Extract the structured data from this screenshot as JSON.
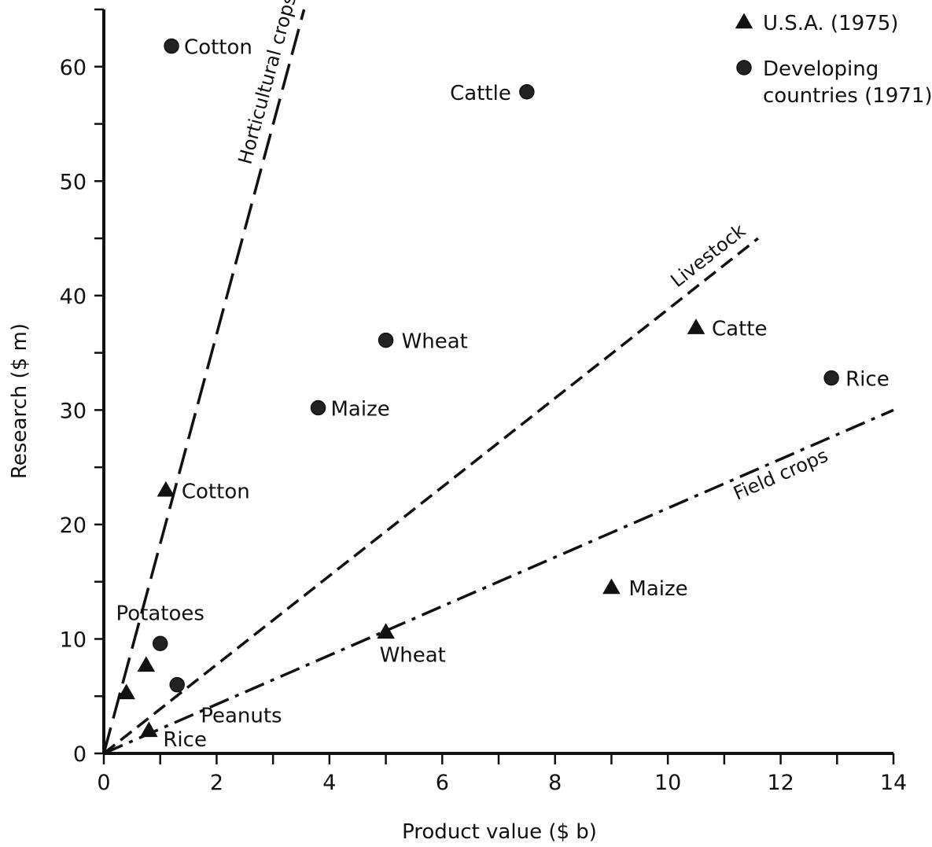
{
  "chart_data": {
    "type": "scatter",
    "title": "",
    "xlabel": "Product value ($ b)",
    "ylabel": "Research ($ m)",
    "xlim": [
      0,
      14
    ],
    "ylim": [
      0,
      65
    ],
    "x_ticks": [
      0,
      2,
      4,
      6,
      8,
      10,
      12,
      14
    ],
    "y_ticks": [
      0,
      10,
      20,
      30,
      40,
      50,
      60
    ],
    "grid": false,
    "legend_position": "top-right",
    "series": [
      {
        "name": "U.S.A. (1975)",
        "marker": "triangle",
        "points": [
          {
            "x": 1.1,
            "y": 23,
            "label": "Cotton"
          },
          {
            "x": 10.5,
            "y": 37.2,
            "label": "Catte"
          },
          {
            "x": 9.0,
            "y": 14.5,
            "label": "Maize"
          },
          {
            "x": 5.0,
            "y": 10.6,
            "label": "Wheat"
          },
          {
            "x": 0.8,
            "y": 2.0,
            "label": "Rice"
          },
          {
            "x": 0.4,
            "y": 5.3,
            "label": ""
          },
          {
            "x": 0.75,
            "y": 7.7,
            "label": ""
          }
        ]
      },
      {
        "name": "Developing countries (1971)",
        "marker": "circle",
        "points": [
          {
            "x": 1.2,
            "y": 61.8,
            "label": "Cotton"
          },
          {
            "x": 7.5,
            "y": 57.8,
            "label": "Cattle"
          },
          {
            "x": 5.0,
            "y": 36.1,
            "label": "Wheat"
          },
          {
            "x": 3.8,
            "y": 30.2,
            "label": "Maize"
          },
          {
            "x": 12.9,
            "y": 32.8,
            "label": "Rice"
          },
          {
            "x": 1.0,
            "y": 9.6,
            "label": "Potatoes"
          },
          {
            "x": 1.3,
            "y": 6.0,
            "label": "Peanuts"
          }
        ]
      }
    ],
    "reference_lines": [
      {
        "label": "Horticultural crops",
        "style": "long-dash",
        "from": [
          0,
          0
        ],
        "to": [
          3.55,
          65
        ]
      },
      {
        "label": "Livestock",
        "style": "dash",
        "from": [
          0,
          0
        ],
        "to": [
          11.6,
          45
        ]
      },
      {
        "label": "Field crops",
        "style": "dash-dot",
        "from": [
          0,
          0
        ],
        "to": [
          14,
          30
        ]
      }
    ]
  }
}
